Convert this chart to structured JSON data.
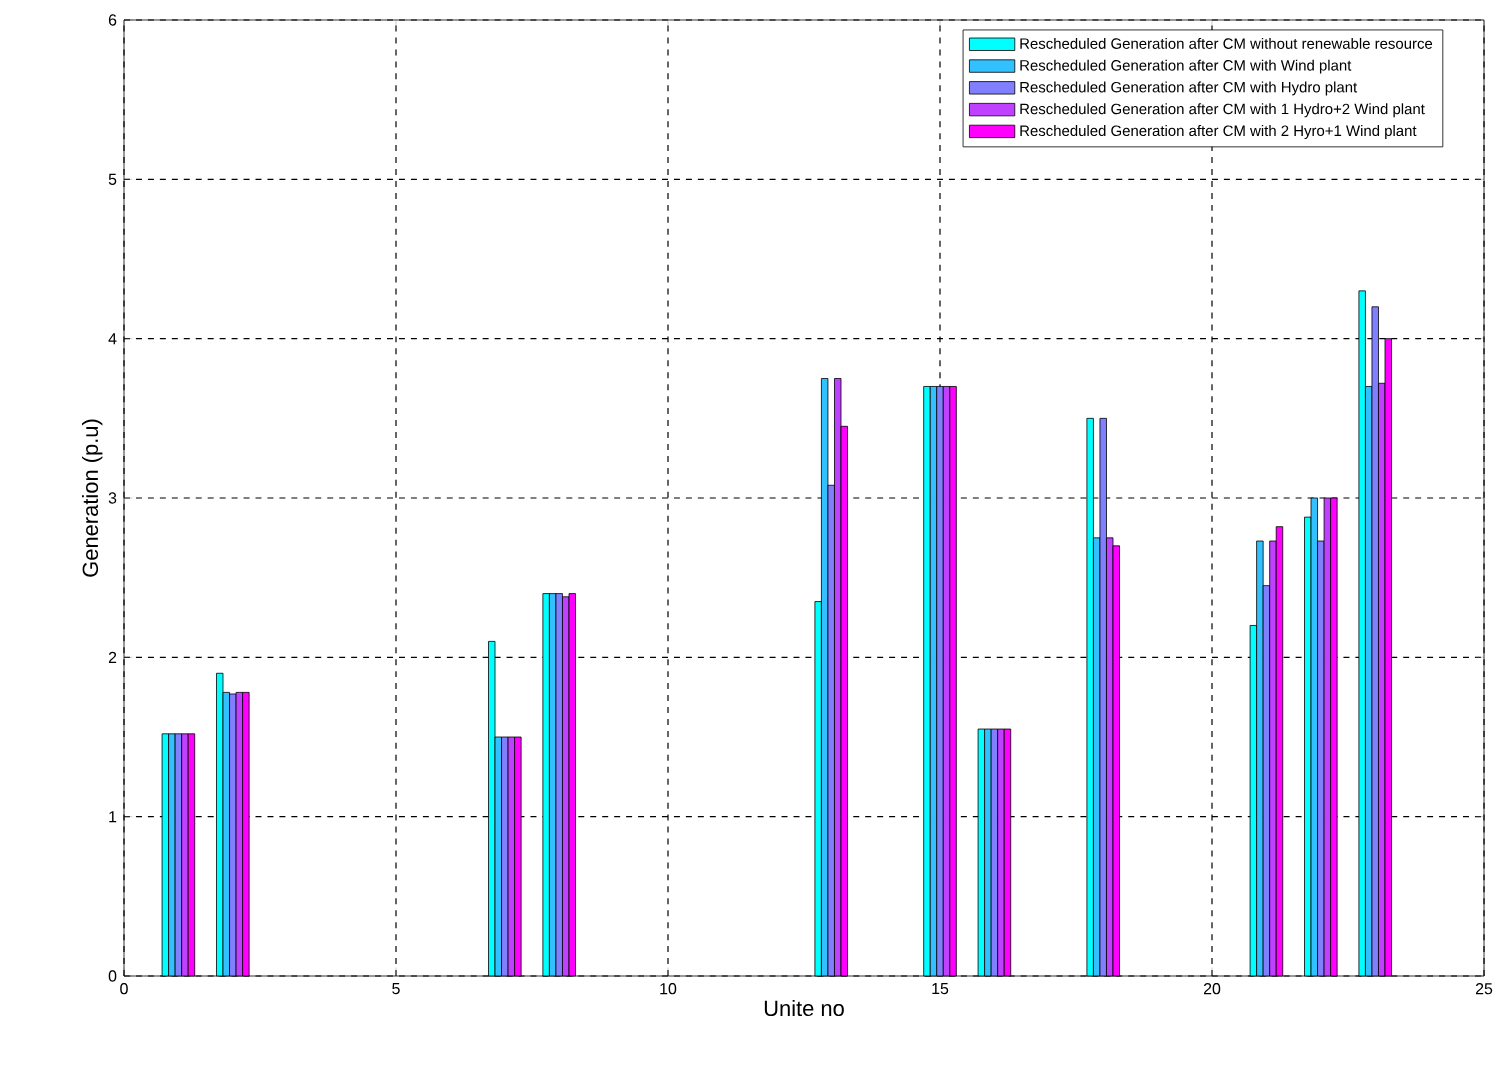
{
  "chart_data": {
    "type": "bar",
    "xlabel": "Unite no",
    "ylabel": "Generation (p.u)",
    "x": [
      1,
      2,
      7,
      8,
      13,
      15,
      16,
      18,
      21,
      22,
      23
    ],
    "series": [
      {
        "name": "Rescheduled Generation after CM without renewable resource",
        "color": "#00ffff",
        "values": [
          1.52,
          1.9,
          2.1,
          2.4,
          2.35,
          3.7,
          1.55,
          3.5,
          2.2,
          2.88,
          4.3
        ]
      },
      {
        "name": "Rescheduled Generation after CM with Wind plant",
        "color": "#33c0ff",
        "values": [
          1.52,
          1.78,
          1.5,
          2.4,
          3.75,
          3.7,
          1.55,
          2.75,
          2.73,
          3.0,
          3.7
        ]
      },
      {
        "name": "Rescheduled Generation after CM with Hydro plant",
        "color": "#8080ff",
        "values": [
          1.52,
          1.77,
          1.5,
          2.4,
          3.08,
          3.7,
          1.55,
          3.5,
          2.45,
          2.73,
          4.2
        ]
      },
      {
        "name": "Rescheduled Generation after CM with 1 Hydro+2 Wind plant",
        "color": "#bf40ff",
        "values": [
          1.52,
          1.78,
          1.5,
          2.38,
          3.75,
          3.7,
          1.55,
          2.75,
          2.73,
          3.0,
          3.72
        ]
      },
      {
        "name": "Rescheduled Generation after CM with 2 Hyro+1 Wind plant",
        "color": "#ff00ff",
        "values": [
          1.52,
          1.78,
          1.5,
          2.4,
          3.45,
          3.7,
          1.55,
          2.7,
          2.82,
          3.0,
          4.0
        ]
      }
    ],
    "xlim": [
      0,
      25
    ],
    "xticks": [
      0,
      5,
      10,
      15,
      20,
      25
    ],
    "ylim": [
      0,
      6
    ],
    "yticks": [
      0,
      1,
      2,
      3,
      4,
      5,
      6
    ],
    "grid": true,
    "legend": "top right"
  }
}
